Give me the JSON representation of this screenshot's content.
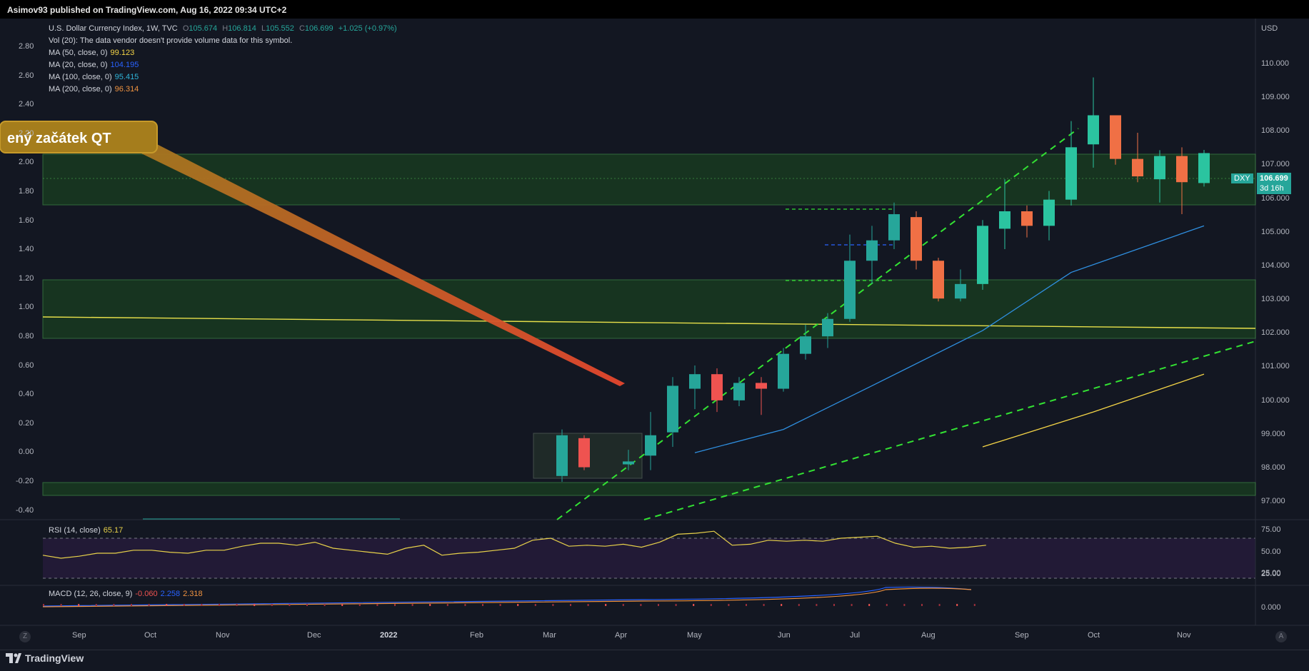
{
  "header": {
    "published_by": "Asimov93 published on TradingView.com, Aug 16, 2022 09:34 UTC+2"
  },
  "legend": {
    "symbol_line": "U.S. Dollar Currency Index, 1W, TVC",
    "ohlc": [
      {
        "k": "O",
        "v": "105.674"
      },
      {
        "k": "H",
        "v": "106.814"
      },
      {
        "k": "L",
        "v": "105.552"
      },
      {
        "k": "C",
        "v": "106.699"
      }
    ],
    "change": "+1.025 (+0.97%)",
    "vol": "Vol (20): The data vendor doesn't provide volume data for this symbol.",
    "mas": [
      {
        "label": "MA (50, close, 0)",
        "value": "99.123",
        "color": "#f5d547"
      },
      {
        "label": "MA (20, close, 0)",
        "value": "104.195",
        "color": "#2962ff"
      },
      {
        "label": "MA (100, close, 0)",
        "value": "95.415",
        "color": "#2fb4d8"
      },
      {
        "label": "MA (200, close, 0)",
        "value": "96.314",
        "color": "#f09340"
      }
    ]
  },
  "annotation": {
    "callout_text": "ený začátek QT"
  },
  "axes": {
    "right_unit": "USD",
    "right_ticks": [
      "110.000",
      "109.000",
      "108.000",
      "107.000",
      "106.000",
      "105.000",
      "104.000",
      "103.000",
      "102.000",
      "101.000",
      "100.000",
      "99.000",
      "98.000",
      "97.000"
    ],
    "left_ticks": [
      "2.80",
      "2.60",
      "2.40",
      "2.20",
      "2.00",
      "1.80",
      "1.60",
      "1.40",
      "1.20",
      "1.00",
      "0.80",
      "0.60",
      "0.40",
      "0.20",
      "0.00",
      "-0.20",
      "-0.40"
    ],
    "time_ticks": [
      "Sep",
      "Oct",
      "Nov",
      "Dec",
      "2022",
      "Feb",
      "Mar",
      "Apr",
      "May",
      "Jun",
      "Jul",
      "Aug",
      "Sep",
      "Oct",
      "Nov"
    ],
    "price_label": {
      "symbol": "DXY",
      "price": "106.699",
      "countdown": "3d 16h"
    }
  },
  "rsi": {
    "label": "RSI (14, close)",
    "value": "65.17",
    "ticks": [
      "75.00",
      "50.00",
      "25.00"
    ],
    "values": [
      53,
      50,
      52,
      55,
      55,
      58,
      58,
      56,
      55,
      58,
      58,
      62,
      65,
      65,
      63,
      66,
      60,
      58,
      56,
      54,
      60,
      63,
      53,
      55,
      56,
      58,
      60,
      68,
      70,
      62,
      63,
      62,
      64,
      61,
      66,
      74,
      75,
      77,
      63,
      64,
      68,
      67,
      68,
      67,
      70,
      71,
      72,
      65,
      61,
      62,
      60,
      61,
      63
    ]
  },
  "macd": {
    "label": "MACD (12, 26, close, 9)",
    "hist": "-0.060",
    "macd_value": "2.258",
    "signal_value": "2.318",
    "ticks": [
      "25.00",
      "0.000"
    ]
  },
  "buttons": {
    "z": "Z",
    "a": "A"
  },
  "logo": {
    "text": "TradingView"
  },
  "colors": {
    "bg": "#131722",
    "up": "#26a69a",
    "down": "#ef5350",
    "up_strong": "#4bd6a8",
    "zone_fill": "#1b4d1f",
    "zone_line": "#4caf50",
    "trend_green": "#33e233",
    "yellow_line": "#e8e04a",
    "price_badge": "#26a69a"
  },
  "chart_data": {
    "type": "candlestick",
    "title": "U.S. Dollar Currency Index, 1W, TVC",
    "y_range": [
      96.6,
      110.6
    ],
    "x_start": "2021-08-16",
    "candles": [
      {
        "t": "2022-01-24",
        "o": 95.6,
        "h": 97.2,
        "l": 95.4,
        "c": 97.0
      },
      {
        "t": "2022-01-31",
        "o": 96.9,
        "h": 97.0,
        "l": 95.8,
        "c": 95.9
      },
      {
        "t": "2022-02-14",
        "o": 96.0,
        "h": 96.5,
        "l": 95.8,
        "c": 96.1
      },
      {
        "t": "2022-02-21",
        "o": 96.3,
        "h": 97.8,
        "l": 95.8,
        "c": 97.0
      },
      {
        "t": "2022-02-28",
        "o": 97.1,
        "h": 99.0,
        "l": 96.6,
        "c": 98.7
      },
      {
        "t": "2022-03-07",
        "o": 98.6,
        "h": 99.4,
        "l": 97.9,
        "c": 99.1
      },
      {
        "t": "2022-03-14",
        "o": 99.1,
        "h": 99.3,
        "l": 97.8,
        "c": 98.2
      },
      {
        "t": "2022-03-21",
        "o": 98.2,
        "h": 99.0,
        "l": 98.0,
        "c": 98.8
      },
      {
        "t": "2022-03-28",
        "o": 98.8,
        "h": 99.0,
        "l": 97.7,
        "c": 98.6
      },
      {
        "t": "2022-04-04",
        "o": 98.6,
        "h": 100.0,
        "l": 98.5,
        "c": 99.8
      },
      {
        "t": "2022-04-11",
        "o": 99.8,
        "h": 100.8,
        "l": 99.6,
        "c": 100.4
      },
      {
        "t": "2022-04-18",
        "o": 100.4,
        "h": 101.2,
        "l": 100.0,
        "c": 101.0
      },
      {
        "t": "2022-04-25",
        "o": 101.0,
        "h": 103.9,
        "l": 100.9,
        "c": 103.0
      },
      {
        "t": "2022-05-02",
        "o": 103.0,
        "h": 104.2,
        "l": 102.2,
        "c": 103.7
      },
      {
        "t": "2022-05-09",
        "o": 103.7,
        "h": 105.0,
        "l": 103.4,
        "c": 104.6
      },
      {
        "t": "2022-05-16",
        "o": 104.5,
        "h": 104.7,
        "l": 102.7,
        "c": 103.0
      },
      {
        "t": "2022-05-23",
        "o": 103.0,
        "h": 103.1,
        "l": 101.6,
        "c": 101.7
      },
      {
        "t": "2022-05-30",
        "o": 101.7,
        "h": 102.7,
        "l": 101.6,
        "c": 102.2
      },
      {
        "t": "2022-06-06",
        "o": 102.2,
        "h": 104.4,
        "l": 102.0,
        "c": 104.2
      },
      {
        "t": "2022-06-13",
        "o": 104.1,
        "h": 105.8,
        "l": 103.4,
        "c": 104.7
      },
      {
        "t": "2022-06-20",
        "o": 104.7,
        "h": 104.9,
        "l": 103.8,
        "c": 104.2
      },
      {
        "t": "2022-06-27",
        "o": 104.2,
        "h": 105.4,
        "l": 103.7,
        "c": 105.1
      },
      {
        "t": "2022-07-04",
        "o": 105.1,
        "h": 107.8,
        "l": 104.9,
        "c": 106.9
      },
      {
        "t": "2022-07-11",
        "o": 107.0,
        "h": 109.3,
        "l": 106.2,
        "c": 108.0
      },
      {
        "t": "2022-07-18",
        "o": 108.0,
        "h": 108.0,
        "l": 106.3,
        "c": 106.5
      },
      {
        "t": "2022-07-25",
        "o": 106.5,
        "h": 107.4,
        "l": 105.7,
        "c": 105.9
      },
      {
        "t": "2022-08-01",
        "o": 105.8,
        "h": 106.8,
        "l": 105.0,
        "c": 106.6
      },
      {
        "t": "2022-08-08",
        "o": 106.6,
        "h": 106.9,
        "l": 104.6,
        "c": 105.7
      },
      {
        "t": "2022-08-15",
        "o": 105.67,
        "h": 106.81,
        "l": 105.55,
        "c": 106.7
      }
    ],
    "ma20": [
      {
        "t": "2022-03-07",
        "v": 96.4
      },
      {
        "t": "2022-04-04",
        "v": 97.2
      },
      {
        "t": "2022-05-02",
        "v": 98.7
      },
      {
        "t": "2022-06-06",
        "v": 100.6
      },
      {
        "t": "2022-07-04",
        "v": 102.6
      },
      {
        "t": "2022-08-15",
        "v": 104.2
      }
    ],
    "ma50": [
      {
        "t": "2022-06-06",
        "v": 96.6
      },
      {
        "t": "2022-07-11",
        "v": 97.8
      },
      {
        "t": "2022-08-15",
        "v": 99.1
      }
    ]
  }
}
